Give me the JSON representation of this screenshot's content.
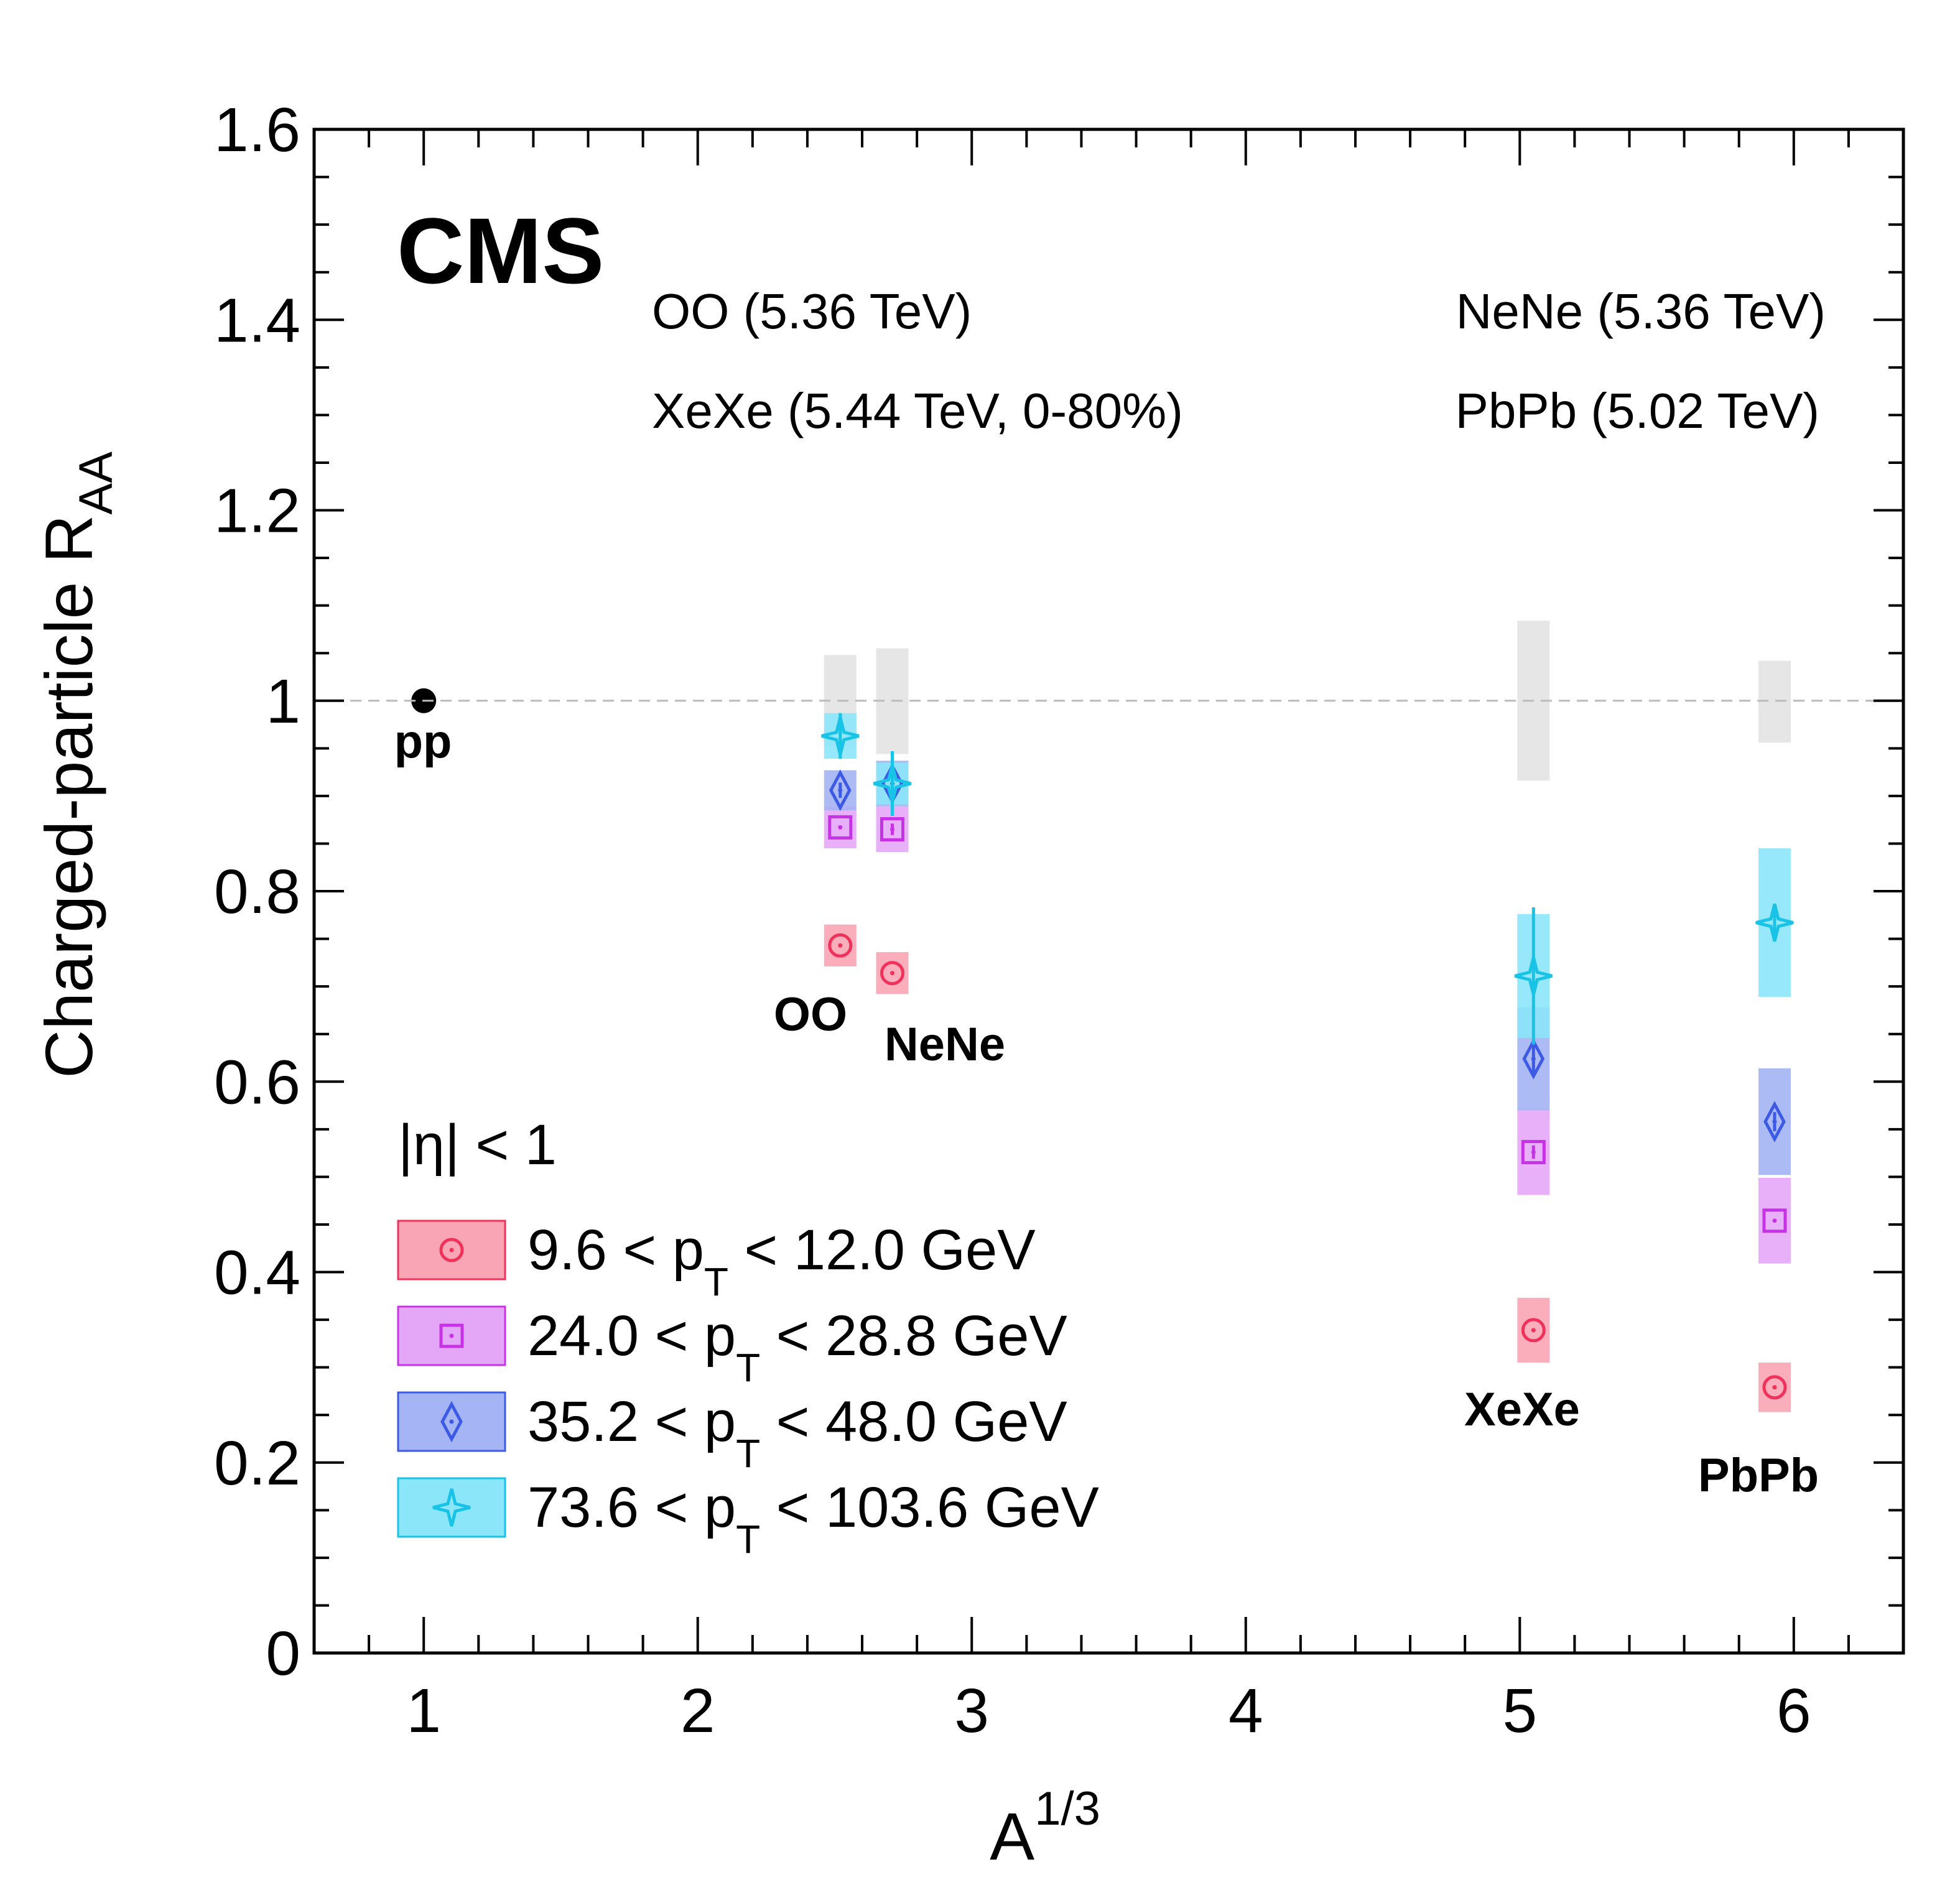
{
  "chart_data": {
    "type": "scatter",
    "title": "CMS",
    "xlabel": "A",
    "xlabel_sup": "1/3",
    "ylabel": "Charged-particle R",
    "ylabel_sub": "AA",
    "xlim": [
      0.6,
      6.4
    ],
    "ylim": [
      0,
      1.6
    ],
    "xticks": [
      "1",
      "2",
      "3",
      "4",
      "5",
      "6"
    ],
    "yticks": [
      "0",
      "0.2",
      "0.4",
      "0.6",
      "0.8",
      "1",
      "1.2",
      "1.4",
      "1.6"
    ],
    "reference_line_y": 1.0,
    "collision_labels": [
      "OO (5.36 TeV)",
      "NeNe (5.36 TeV)",
      "XeXe (5.44 TeV, 0-80%)",
      "PbPb (5.02 TeV)"
    ],
    "eta_label": "|η| < 1",
    "pp_point": {
      "x": 1.0,
      "y": 1.0,
      "label": "pp"
    },
    "systems": [
      {
        "name": "OO",
        "x": 2.52,
        "norm_unc": [
          0.952,
          1.048
        ]
      },
      {
        "name": "NeNe",
        "x": 2.71,
        "norm_unc": [
          0.944,
          1.055
        ]
      },
      {
        "name": "XeXe",
        "x": 5.05,
        "norm_unc": [
          0.916,
          1.084
        ]
      },
      {
        "name": "PbPb",
        "x": 5.93,
        "norm_unc": [
          0.956,
          1.042
        ]
      }
    ],
    "series": [
      {
        "name": "9.6 < p_T < 12.0 GeV",
        "legend_prefix": "9.6 < p",
        "legend_sub": "T",
        "legend_suffix": " < 12.0 GeV",
        "marker": "circle",
        "color": "#f0325a",
        "fill": "#f9a5b5",
        "points": [
          {
            "x": 2.52,
            "y": 0.743,
            "sys": 0.022,
            "stat": 0.003
          },
          {
            "x": 2.71,
            "y": 0.714,
            "sys": 0.022,
            "stat": 0.003
          },
          {
            "x": 5.05,
            "y": 0.339,
            "sys": 0.034,
            "stat": 0.002
          },
          {
            "x": 5.93,
            "y": 0.279,
            "sys": 0.026,
            "stat": 0.002
          }
        ]
      },
      {
        "name": "24.0 < p_T < 28.8 GeV",
        "legend_prefix": "24.0 < p",
        "legend_sub": "T",
        "legend_suffix": " < 28.8 GeV",
        "marker": "square",
        "color": "#c832e6",
        "fill": "#e4a7f7",
        "points": [
          {
            "x": 2.52,
            "y": 0.867,
            "sys": 0.022,
            "stat": 0.005
          },
          {
            "x": 2.71,
            "y": 0.865,
            "sys": 0.024,
            "stat": 0.006
          },
          {
            "x": 5.05,
            "y": 0.526,
            "sys": 0.045,
            "stat": 0.007
          },
          {
            "x": 5.93,
            "y": 0.454,
            "sys": 0.045,
            "stat": 0.005
          }
        ]
      },
      {
        "name": "35.2 < p_T < 48.0 GeV",
        "legend_prefix": "35.2 < p",
        "legend_sub": "T",
        "legend_suffix": " < 48.0 GeV",
        "marker": "diamond",
        "color": "#3c5ae6",
        "fill": "#a4b4f4",
        "points": [
          {
            "x": 2.52,
            "y": 0.906,
            "sys": 0.021,
            "stat": 0.008
          },
          {
            "x": 2.71,
            "y": 0.913,
            "sys": 0.024,
            "stat": 0.012
          },
          {
            "x": 5.05,
            "y": 0.624,
            "sys": 0.054,
            "stat": 0.016
          },
          {
            "x": 5.93,
            "y": 0.558,
            "sys": 0.056,
            "stat": 0.01
          }
        ]
      },
      {
        "name": "73.6 < p_T < 103.6 GeV",
        "legend_prefix": "73.6 < p",
        "legend_sub": "T",
        "legend_suffix": " < 103.6 GeV",
        "marker": "star",
        "color": "#19c3e6",
        "fill": "#8ce6f9",
        "points": [
          {
            "x": 2.52,
            "y": 0.963,
            "sys": 0.024,
            "stat": 0.024
          },
          {
            "x": 2.71,
            "y": 0.913,
            "sys": 0.022,
            "stat": 0.034
          },
          {
            "x": 5.05,
            "y": 0.711,
            "sys": 0.065,
            "stat": 0.072
          },
          {
            "x": 5.93,
            "y": 0.767,
            "sys": 0.078,
            "stat": 0.016
          }
        ]
      }
    ]
  }
}
